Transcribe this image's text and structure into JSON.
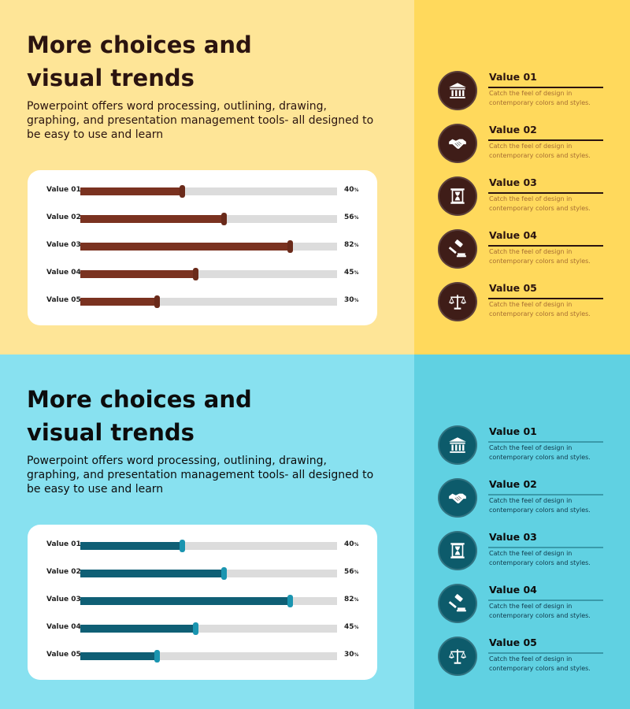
{
  "slides": [
    {
      "theme": {
        "left_bg": "#fee597",
        "right_bg": "#ffd95c",
        "accent": "#7a3220",
        "text": "#2b1410",
        "circle": "#3f1d18",
        "item_text": "#a66d32",
        "line": "#2b1410"
      },
      "title": "More choices and visual trends",
      "description": "Powerpoint offers word processing, outlining, drawing, graphing, and presentation management tools- all designed to be easy to use and learn",
      "bars": [
        {
          "label": "Value 01",
          "value": 40
        },
        {
          "label": "Value 02",
          "value": 56
        },
        {
          "label": "Value 03",
          "value": 82
        },
        {
          "label": "Value 04",
          "value": 45
        },
        {
          "label": "Value 05",
          "value": 30
        }
      ],
      "items": [
        {
          "icon": "bank-icon",
          "title": "Value 01",
          "text": "Catch the feel of design in contemporary colors and styles."
        },
        {
          "icon": "handshake-icon",
          "title": "Value 02",
          "text": "Catch the feel of design in contemporary colors and styles."
        },
        {
          "icon": "document-icon",
          "title": "Value 03",
          "text": "Catch the feel of design in contemporary colors and styles."
        },
        {
          "icon": "gavel-icon",
          "title": "Value 04",
          "text": "Catch the feel of design in contemporary colors and styles."
        },
        {
          "icon": "scales-icon",
          "title": "Value 05",
          "text": "Catch the feel of design in contemporary colors and styles."
        }
      ]
    },
    {
      "theme": {
        "left_bg": "#88e1f0",
        "right_bg": "#60d1e2",
        "accent": "#0f5f75",
        "text": "#0c0c0c",
        "circle": "#0d5b6b",
        "item_text": "#10384a",
        "line": "#3a9aaa"
      },
      "title": "More choices and visual trends",
      "description": "Powerpoint offers word processing, outlining, drawing, graphing, and presentation management tools- all designed to be easy to use and learn",
      "bars": [
        {
          "label": "Value 01",
          "value": 40
        },
        {
          "label": "Value 02",
          "value": 56
        },
        {
          "label": "Value 03",
          "value": 82
        },
        {
          "label": "Value 04",
          "value": 45
        },
        {
          "label": "Value 05",
          "value": 30
        }
      ],
      "items": [
        {
          "icon": "bank-icon",
          "title": "Value 01",
          "text": "Catch the feel of design in contemporary colors and styles."
        },
        {
          "icon": "handshake-icon",
          "title": "Value 02",
          "text": "Catch the feel of design in contemporary colors and styles."
        },
        {
          "icon": "document-icon",
          "title": "Value 03",
          "text": "Catch the feel of design in contemporary colors and styles."
        },
        {
          "icon": "gavel-icon",
          "title": "Value 04",
          "text": "Catch the feel of design in contemporary colors and styles."
        },
        {
          "icon": "scales-icon",
          "title": "Value 05",
          "text": "Catch the feel of design in contemporary colors and styles."
        }
      ]
    }
  ]
}
